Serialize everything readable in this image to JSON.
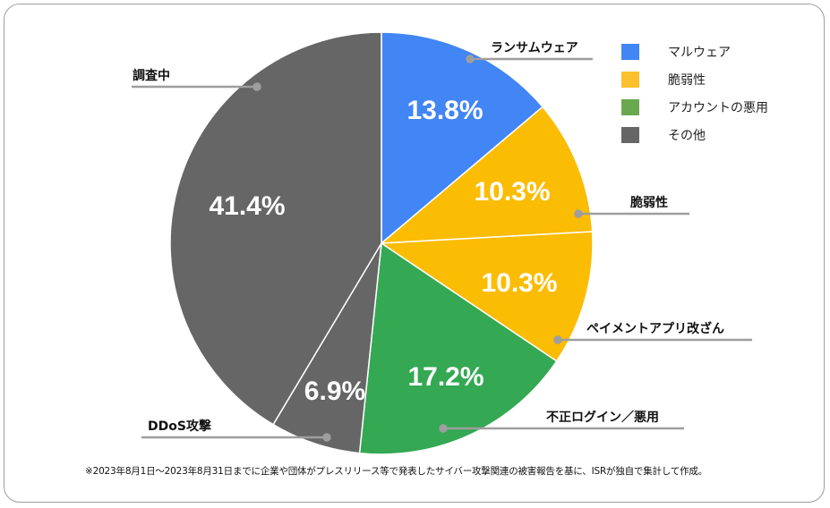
{
  "chart_data": {
    "type": "pie",
    "title": "",
    "categories": [
      "ランサムウェア",
      "脆弱性",
      "ペイメントアプリ改ざん",
      "不正ログイン／悪用",
      "DDoS攻撃",
      "調査中"
    ],
    "values": [
      13.8,
      10.3,
      10.3,
      17.2,
      6.9,
      41.4
    ],
    "value_labels": [
      "13.8%",
      "10.3%",
      "10.3%",
      "17.2%",
      "6.9%",
      "41.4%"
    ],
    "slice_colors": [
      "#4285f4",
      "#fbbc04",
      "#fbbc04",
      "#34a853",
      "#666666",
      "#666666"
    ],
    "legend": [
      {
        "label": "マルウェア",
        "color": "#4285f4"
      },
      {
        "label": "脆弱性",
        "color": "#fbc02d"
      },
      {
        "label": "アカウントの悪用",
        "color": "#6aa84f"
      },
      {
        "label": "その他",
        "color": "#666666"
      }
    ],
    "legend_position": "right",
    "footnote": "※2023年8月1日～2023年8月31日までに企業や団体がプレスリリース等で発表したサイバー攻撃関連の被害報告を基に、ISRが独自で集計して作成。"
  },
  "labels": {
    "ransomware": "ランサムウェア",
    "vulnerability": "脆弱性",
    "payment_app": "ペイメントアプリ改ざん",
    "unauthorized_login": "不正ログイン／悪用",
    "ddos": "DDoS攻撃",
    "investigating": "調査中"
  },
  "percents": {
    "ransomware": "13.8%",
    "vulnerability": "10.3%",
    "payment_app": "10.3%",
    "unauthorized_login": "17.2%",
    "ddos": "6.9%",
    "investigating": "41.4%"
  },
  "legend": {
    "items": [
      {
        "label": "マルウェア",
        "color": "#4285f4"
      },
      {
        "label": "脆弱性",
        "color": "#fbc02d"
      },
      {
        "label": "アカウントの悪用",
        "color": "#6aa84f"
      },
      {
        "label": "その他",
        "color": "#666666"
      }
    ]
  },
  "footnote": "※2023年8月1日～2023年8月31日までに企業や団体がプレスリリース等で発表したサイバー攻撃関連の被害報告を基に、ISRが独自で集計して作成。"
}
